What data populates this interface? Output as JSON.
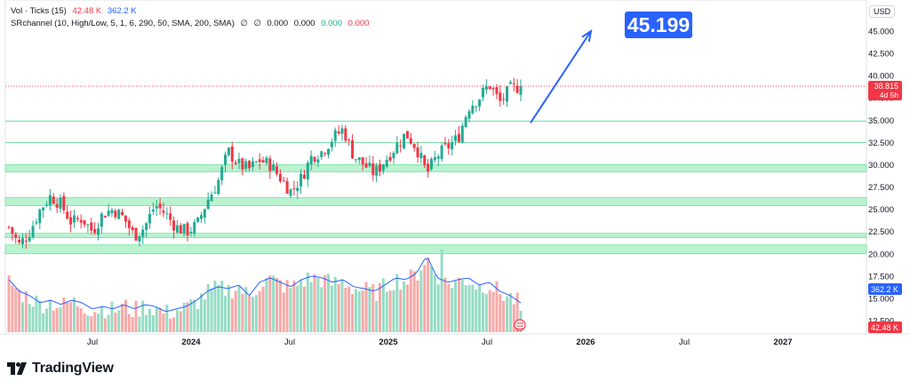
{
  "legend": {
    "volume": {
      "name": "Vol · Ticks (15)",
      "value1": "42.48 K",
      "value2": "362.2 K"
    },
    "indicator": {
      "name": "SRchannel (10, High/Low, 5, 1, 6, 290, 50, SMA, 200, SMA)",
      "sym1": "∅",
      "sym2": "∅",
      "v1": "0.000",
      "v2": "0.000",
      "v3": "0.000",
      "v4": "0.000"
    }
  },
  "currency": "USD",
  "brand": {
    "name": "TradingView"
  },
  "colors": {
    "up": "#22ab94",
    "down": "#f23645",
    "zone": "#b9f3cf",
    "zoneLine": "#52d990",
    "avg": "#2962ff",
    "arrow": "#2962ff",
    "price": "#f23645",
    "target": "#2962ff"
  },
  "chart_data": {
    "type": "candlestick",
    "price_axis": {
      "min": 11,
      "max": 46.5,
      "ticks": [
        "45.000",
        "42.500",
        "40.000",
        "37.500",
        "35.000",
        "32.500",
        "30.000",
        "27.500",
        "25.000",
        "22.500",
        "20.000",
        "17.500",
        "15.000",
        "12.500"
      ]
    },
    "time_axis": {
      "labels": [
        "Jul",
        "2024",
        "Jul",
        "2025",
        "Jul",
        "2026",
        "Jul",
        "2027"
      ],
      "positions": [
        0.5,
        1,
        1.5,
        2,
        2.5,
        3,
        3.5,
        4
      ]
    },
    "last_price": {
      "value": "38.815",
      "countdown": "4d 5h"
    },
    "target": {
      "label": "45.199",
      "value": 45.199
    },
    "volume_labels": {
      "avg": "362.2 K",
      "current": "42.48 K"
    },
    "projection": {
      "from_value": 34.7,
      "to_value": 45.0
    },
    "support_zones": [
      [
        29.2,
        30.0
      ],
      [
        25.4,
        26.3
      ],
      [
        21.8,
        22.3
      ],
      [
        20.0,
        21.0
      ]
    ],
    "resistance_lines": [
      34.9,
      32.5
    ],
    "close_path": [
      23.0,
      21.0,
      22.5,
      25.0,
      26.5,
      25.5,
      23.5,
      24.0,
      22.5,
      24.5,
      25.0,
      24.0,
      22.0,
      23.0,
      25.5,
      24.5,
      23.0,
      22.5,
      23.2,
      26.0,
      28.0,
      31.5,
      30.0,
      29.5,
      30.5,
      30.0,
      28.5,
      27.0,
      28.5,
      31.0,
      31.5,
      33.0,
      34.0,
      31.0,
      30.0,
      29.0,
      30.5,
      32.0,
      33.5,
      32.0,
      29.0,
      31.0,
      32.0,
      33.0,
      36.5,
      37.5,
      39.0,
      37.0,
      38.5,
      38.815
    ],
    "volume_path": [
      16.8,
      15.5,
      15.0,
      14.2,
      14.5,
      14.0,
      14.5,
      14.2,
      13.5,
      13.8,
      13.5,
      14.0,
      13.5,
      14.0,
      13.8,
      13.2,
      13.5,
      13.8,
      14.5,
      15.5,
      16.0,
      15.8,
      16.2,
      15.0,
      16.5,
      17.0,
      16.5,
      16.0,
      16.8,
      17.2,
      17.0,
      16.5,
      16.8,
      16.0,
      15.8,
      15.5,
      16.2,
      17.0,
      16.8,
      17.5,
      19.5,
      17.0,
      16.5,
      16.8,
      17.0,
      16.2,
      16.5,
      15.5,
      15.0,
      14.2
    ]
  }
}
